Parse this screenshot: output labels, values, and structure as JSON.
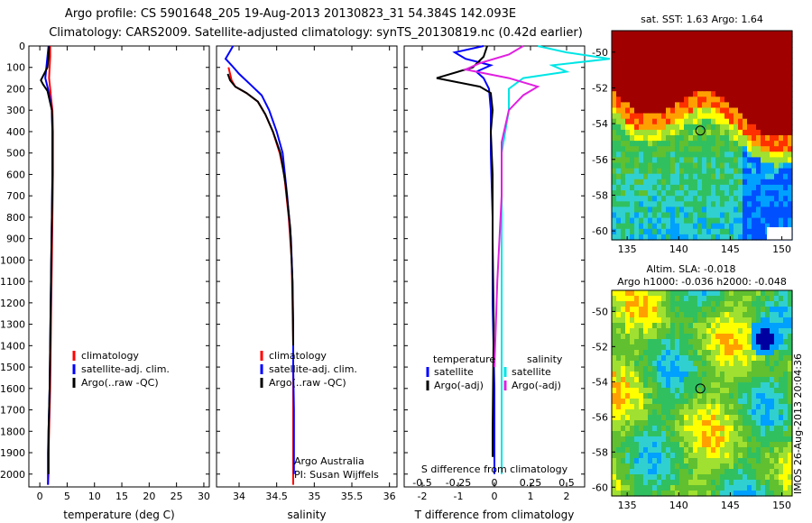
{
  "header": {
    "line1": "Argo profile: CS 5901648_205 19-Aug-2013 20130823_31 54.384S 142.093E",
    "line2": "Climatology: CARS2009. Satellite-adjusted climatology: synTS_20130819.nc (0.42d earlier)"
  },
  "colors": {
    "climatology": "#ff0000",
    "satellite": "#0000ff",
    "argo": "#000000",
    "salinity_sat": "#00e5e5",
    "salinity_argo": "#e020e0"
  },
  "chart_data": [
    {
      "type": "line",
      "id": "temperature",
      "xlabel": "temperature (deg C)",
      "ylabel": "",
      "xlim": [
        -2,
        31
      ],
      "ylim": [
        2060,
        0
      ],
      "xticks": [
        0,
        5,
        10,
        15,
        20,
        25,
        30
      ],
      "yticks": [
        0,
        100,
        200,
        300,
        400,
        500,
        600,
        700,
        800,
        900,
        1000,
        1100,
        1200,
        1300,
        1400,
        1500,
        1600,
        1700,
        1800,
        1900,
        2000
      ],
      "legend": [
        "climatology",
        "satellite-adj. clim.",
        "Argo(..raw -QC)"
      ],
      "series": [
        {
          "name": "climatology",
          "color": "#ff0000",
          "x": [
            1.9,
            1.9,
            1.8,
            1.7,
            1.9,
            2.1,
            2.3,
            2.4,
            2.4,
            2.4,
            2.3,
            2.2,
            2.1,
            2.0,
            1.9,
            1.8,
            1.7,
            1.6,
            1.6,
            1.5
          ],
          "y": [
            0,
            50,
            100,
            150,
            200,
            250,
            300,
            400,
            500,
            600,
            800,
            1000,
            1200,
            1400,
            1600,
            1700,
            1800,
            1900,
            2000,
            2050
          ]
        },
        {
          "name": "satellite-adj. clim.",
          "color": "#0000ff",
          "x": [
            1.6,
            1.4,
            1.2,
            1.0,
            1.5,
            1.9,
            2.2,
            2.3,
            2.3,
            2.3,
            2.2,
            2.1,
            2.0,
            1.9,
            1.8,
            1.7,
            1.6,
            1.5,
            1.5,
            1.5
          ],
          "y": [
            0,
            50,
            100,
            150,
            200,
            250,
            300,
            400,
            500,
            600,
            800,
            1000,
            1200,
            1400,
            1600,
            1700,
            1800,
            1900,
            2000,
            2050
          ]
        },
        {
          "name": "Argo(..raw -QC)",
          "color": "#000000",
          "x": [
            1.7,
            1.6,
            1.4,
            0.2,
            0.6,
            1.4,
            2.2,
            2.3,
            2.3,
            2.3,
            2.2,
            2.1,
            2.0,
            1.9,
            1.8,
            1.7,
            1.6,
            1.6
          ],
          "y": [
            0,
            50,
            100,
            160,
            180,
            210,
            300,
            400,
            500,
            600,
            800,
            1000,
            1200,
            1400,
            1600,
            1700,
            1800,
            2000
          ]
        }
      ]
    },
    {
      "type": "line",
      "id": "salinity",
      "xlabel": "salinity",
      "ylabel": "",
      "xlim": [
        33.7,
        36.1
      ],
      "ylim": [
        2060,
        0
      ],
      "xticks": [
        34,
        34.5,
        35,
        35.5,
        36
      ],
      "legend": [
        "climatology",
        "satellite-adj. clim.",
        "Argo(..raw -QC)"
      ],
      "annotation": [
        "Argo Australia",
        "PI: Susan Wijffels"
      ],
      "series": [
        {
          "name": "climatology",
          "color": "#ff0000",
          "x": [
            33.86,
            33.88,
            33.9,
            33.95,
            34.1,
            34.25,
            34.35,
            34.45,
            34.54,
            34.6,
            34.66,
            34.7,
            34.71,
            34.72,
            34.72,
            34.72,
            34.72,
            34.72
          ],
          "y": [
            100,
            130,
            160,
            190,
            220,
            260,
            320,
            400,
            500,
            600,
            800,
            1000,
            1200,
            1400,
            1600,
            1800,
            2000,
            2050
          ]
        },
        {
          "name": "satellite-adj. clim.",
          "color": "#0000ff",
          "x": [
            33.92,
            33.87,
            33.82,
            33.9,
            34.0,
            34.15,
            34.3,
            34.4,
            34.5,
            34.58,
            34.64,
            34.69,
            34.71,
            34.72,
            34.72,
            34.73,
            34.73,
            34.73
          ],
          "y": [
            0,
            30,
            60,
            90,
            130,
            180,
            230,
            300,
            400,
            500,
            700,
            900,
            1100,
            1300,
            1500,
            1700,
            1900,
            2000
          ]
        },
        {
          "name": "Argo(..raw -QC)",
          "color": "#000000",
          "x": [
            33.85,
            33.88,
            33.95,
            34.1,
            34.25,
            34.35,
            34.45,
            34.55,
            34.62,
            34.68,
            34.71,
            34.72
          ],
          "y": [
            130,
            160,
            190,
            220,
            260,
            320,
            400,
            500,
            650,
            850,
            1100,
            1400
          ]
        }
      ]
    },
    {
      "type": "line",
      "id": "difference",
      "xlabel": "T difference from climatology",
      "x2label": "S difference from climatology",
      "xlim": [
        -2.5,
        2.5
      ],
      "ylim": [
        2060,
        0
      ],
      "xticks": [
        -2,
        -1,
        0,
        1,
        2
      ],
      "x2ticks": [
        -0.5,
        -0.25,
        0,
        0.25,
        0.5
      ],
      "legend_titles": [
        "temperature",
        "salinity"
      ],
      "legend": [
        "satellite",
        "Argo(-adj)",
        "satellite",
        "Argo(-adj)"
      ],
      "series": [
        {
          "name": "satellite",
          "group": "temperature",
          "color": "#0000ff",
          "x": [
            -0.3,
            -1.1,
            -0.8,
            -0.1,
            -0.5,
            -0.3,
            -0.15,
            -0.1,
            -0.1,
            -0.05,
            -0.05,
            0,
            0
          ],
          "y": [
            0,
            30,
            60,
            90,
            120,
            150,
            200,
            300,
            500,
            800,
            1200,
            1600,
            2000
          ]
        },
        {
          "name": "Argo(-adj)",
          "group": "temperature",
          "color": "#000000",
          "x": [
            -0.2,
            -0.3,
            -0.6,
            -1.6,
            -1.0,
            -0.4,
            -0.1,
            -0.05,
            -0.1,
            -0.05,
            -0.05,
            -0.02,
            -0.05,
            -0.05
          ],
          "y": [
            0,
            50,
            100,
            150,
            170,
            190,
            220,
            300,
            400,
            600,
            900,
            1300,
            1800,
            1920
          ]
        },
        {
          "name": "satellite",
          "group": "salinity",
          "color": "#00e5e5",
          "x": [
            0.3,
            0.5,
            0.8,
            0.4,
            0.5,
            0.2,
            0.1,
            0.1,
            0.05,
            0.05,
            0.05,
            0.05,
            0.05
          ],
          "y": [
            0,
            30,
            60,
            90,
            120,
            150,
            200,
            300,
            500,
            800,
            1200,
            1600,
            2000
          ]
        },
        {
          "name": "Argo(-adj)",
          "group": "salinity",
          "color": "#e020e0",
          "x": [
            0.2,
            0.1,
            -0.1,
            -0.2,
            0.1,
            0.3,
            0.2,
            0.1,
            0.05,
            0.05,
            0.02,
            0.0
          ],
          "y": [
            0,
            40,
            80,
            110,
            150,
            190,
            230,
            300,
            450,
            700,
            1100,
            1500
          ]
        }
      ]
    }
  ],
  "maps": {
    "sst": {
      "title": "sat. SST: 1.63 Argo: 1.64",
      "xlim": [
        133.5,
        151
      ],
      "ylim": [
        -60.5,
        -48.8
      ],
      "xticks": [
        135,
        140,
        145,
        150
      ],
      "yticks": [
        -50,
        -52,
        -54,
        -56,
        -58,
        -60
      ],
      "marker": {
        "lon": 142.093,
        "lat": -54.384
      }
    },
    "sla": {
      "title1": "Altim. SLA: -0.018",
      "title2": "Argo h1000: -0.036 h2000: -0.048",
      "xlim": [
        133.5,
        151
      ],
      "ylim": [
        -60.5,
        -48.8
      ],
      "xticks": [
        135,
        140,
        145,
        150
      ],
      "yticks": [
        -50,
        -52,
        -54,
        -56,
        -58,
        -60
      ],
      "marker": {
        "lon": 142.093,
        "lat": -54.384
      }
    }
  },
  "side_label": "IMOS 26-Aug-2013 20:04:36"
}
